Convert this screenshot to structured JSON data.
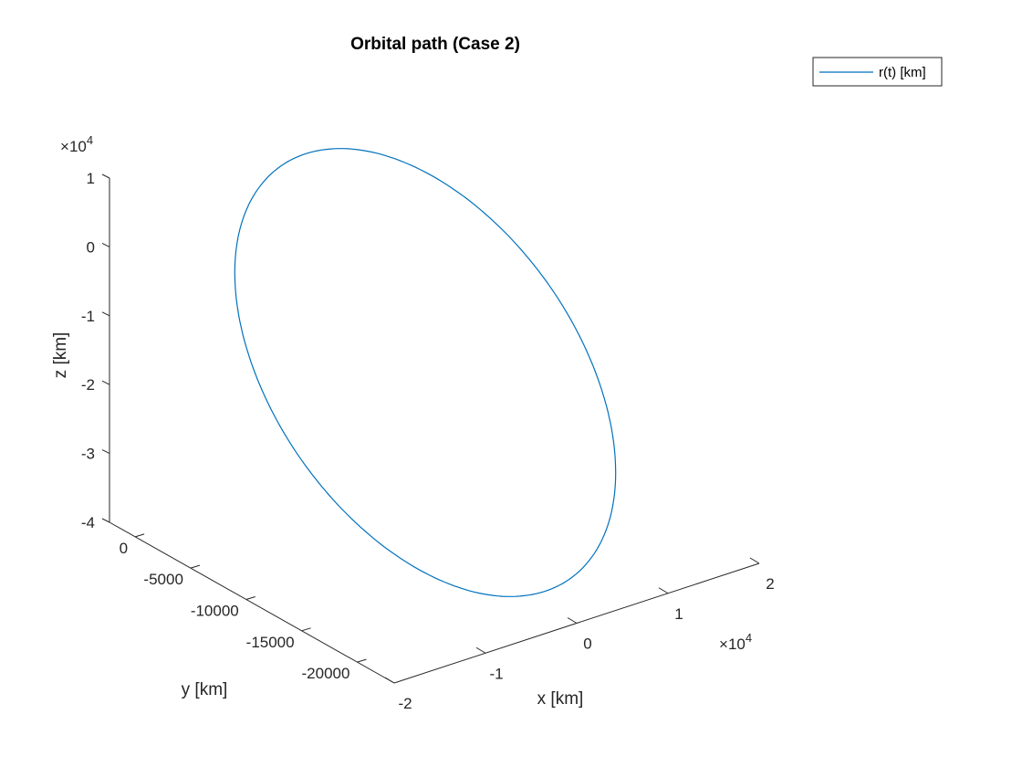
{
  "chart_data": {
    "type": "line",
    "title": "Orbital path (Case 2)",
    "xlabel": "x [km]",
    "ylabel": "y [km]",
    "zlabel": "z [km]",
    "xlim": [
      -2,
      2
    ],
    "ylim": [
      -20000,
      0
    ],
    "zlim": [
      -4,
      1
    ],
    "x_exponent": "10",
    "x_exponent_power": "4",
    "z_exponent": "10",
    "z_exponent_power": "4",
    "x_ticks": [
      "-2",
      "-1",
      "0",
      "1",
      "2"
    ],
    "y_ticks": [
      "0",
      "-5000",
      "-10000",
      "-15000",
      "-20000"
    ],
    "z_ticks": [
      "1",
      "0",
      "-1",
      "-2",
      "-3",
      "-4"
    ],
    "legend": {
      "placement": "top-right",
      "entries": [
        "r(t) [km]"
      ]
    },
    "grid": false,
    "line_color": "#0072BD",
    "series": [
      {
        "name": "r(t) [km]",
        "shape": "closed-ellipse-orbit"
      }
    ]
  }
}
